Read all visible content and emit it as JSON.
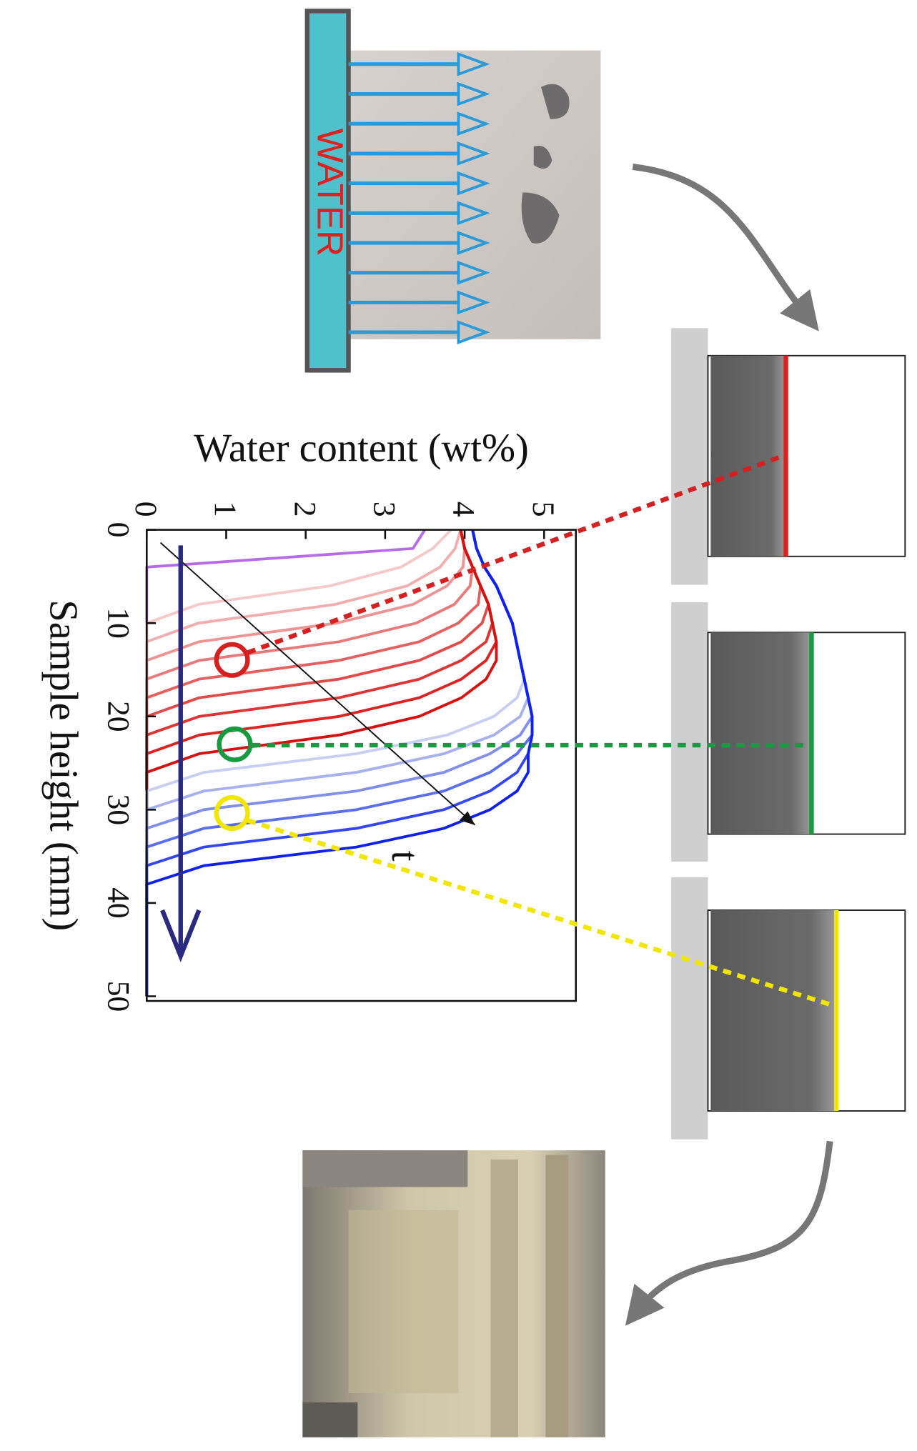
{
  "labels": {
    "water": "WATER"
  },
  "chart_data": {
    "type": "line",
    "xlabel": "Sample height (mm)",
    "ylabel": "Water content (wt%)",
    "annotation": "t",
    "x": [
      0,
      2,
      4,
      6,
      8,
      10,
      12,
      14,
      16,
      18,
      20,
      22,
      24,
      26,
      28,
      30,
      32,
      34,
      36,
      38,
      40,
      42,
      44,
      46,
      48,
      50
    ],
    "xlim": [
      0,
      50.5
    ],
    "xticks": [
      0,
      10,
      20,
      30,
      40,
      50
    ],
    "ylim": [
      0,
      5.4
    ],
    "yticks": [
      0,
      1,
      2,
      3,
      4,
      5
    ],
    "series": [
      {
        "color": "#b76be8",
        "values": [
          3.5,
          3.35,
          0,
          0,
          0,
          0,
          0,
          0,
          0,
          0,
          0,
          0,
          0,
          0,
          0,
          0,
          0,
          0,
          0,
          0,
          0,
          0,
          0,
          0,
          0,
          0
        ]
      },
      {
        "color": "#f6c9c9",
        "values": [
          3.83,
          3.6,
          3.2,
          2.31,
          0.65,
          0,
          0,
          0,
          0,
          0,
          0,
          0,
          0,
          0,
          0,
          0,
          0,
          0,
          0,
          0,
          0,
          0,
          0,
          0,
          0,
          0
        ]
      },
      {
        "color": "#f2aeae",
        "values": [
          3.95,
          3.88,
          3.69,
          3.28,
          2.37,
          0.65,
          0,
          0,
          0,
          0,
          0,
          0,
          0,
          0,
          0,
          0,
          0,
          0,
          0,
          0,
          0,
          0,
          0,
          0,
          0,
          0
        ]
      },
      {
        "color": "#ee9494",
        "values": [
          3.95,
          4.0,
          3.98,
          3.78,
          3.35,
          2.39,
          0.66,
          0,
          0,
          0,
          0,
          0,
          0,
          0,
          0,
          0,
          0,
          0,
          0,
          0,
          0,
          0,
          0,
          0,
          0,
          0
        ]
      },
      {
        "color": "#ea7a7a",
        "values": [
          3.95,
          4.0,
          4.1,
          4.07,
          3.87,
          3.39,
          2.42,
          0.66,
          0,
          0,
          0,
          0,
          0,
          0,
          0,
          0,
          0,
          0,
          0,
          0,
          0,
          0,
          0,
          0,
          0,
          0
        ]
      },
      {
        "color": "#e66060",
        "values": [
          3.95,
          4.0,
          4.1,
          4.2,
          4.17,
          3.92,
          3.43,
          2.42,
          0.66,
          0,
          0,
          0,
          0,
          0,
          0,
          0,
          0,
          0,
          0,
          0,
          0,
          0,
          0,
          0,
          0,
          0
        ]
      },
      {
        "color": "#e34a4a",
        "values": [
          3.95,
          4.0,
          4.1,
          4.2,
          4.3,
          4.22,
          3.96,
          3.43,
          2.42,
          0.66,
          0,
          0,
          0,
          0,
          0,
          0,
          0,
          0,
          0,
          0,
          0,
          0,
          0,
          0,
          0,
          0
        ]
      },
      {
        "color": "#e03434",
        "values": [
          3.95,
          4.0,
          4.1,
          4.2,
          4.3,
          4.35,
          4.27,
          3.96,
          3.43,
          2.42,
          0.66,
          0,
          0,
          0,
          0,
          0,
          0,
          0,
          0,
          0,
          0,
          0,
          0,
          0,
          0,
          0
        ]
      },
      {
        "color": "#dd2222",
        "values": [
          3.95,
          4.0,
          4.1,
          4.2,
          4.3,
          4.35,
          4.4,
          4.27,
          3.96,
          3.43,
          2.42,
          0.66,
          0,
          0,
          0,
          0,
          0,
          0,
          0,
          0,
          0,
          0,
          0,
          0,
          0,
          0
        ]
      },
      {
        "color": "#d81010",
        "values": [
          3.95,
          4.0,
          4.1,
          4.2,
          4.3,
          4.35,
          4.4,
          4.4,
          4.27,
          3.96,
          3.43,
          2.42,
          0.66,
          0,
          0,
          0,
          0,
          0,
          0,
          0,
          0,
          0,
          0,
          0,
          0,
          0
        ]
      },
      {
        "color": "#c8cff2",
        "values": [
          4.1,
          4.15,
          4.25,
          4.4,
          4.5,
          4.6,
          4.65,
          4.7,
          4.75,
          4.66,
          4.37,
          3.78,
          2.64,
          0.72,
          0,
          0,
          0,
          0,
          0,
          0,
          0,
          0,
          0,
          0,
          0,
          0
        ]
      },
      {
        "color": "#a6b1ee",
        "values": [
          4.1,
          4.15,
          4.25,
          4.4,
          4.5,
          4.6,
          4.65,
          4.7,
          4.75,
          4.8,
          4.7,
          4.37,
          3.74,
          2.64,
          0.72,
          0,
          0,
          0,
          0,
          0,
          0,
          0,
          0,
          0,
          0,
          0
        ]
      },
      {
        "color": "#8090ea",
        "values": [
          4.1,
          4.15,
          4.25,
          4.4,
          4.5,
          4.6,
          4.65,
          4.7,
          4.75,
          4.8,
          4.85,
          4.7,
          4.32,
          3.74,
          2.64,
          0.72,
          0,
          0,
          0,
          0,
          0,
          0,
          0,
          0,
          0,
          0
        ]
      },
      {
        "color": "#5a6ef0",
        "values": [
          4.1,
          4.15,
          4.25,
          4.4,
          4.5,
          4.6,
          4.65,
          4.7,
          4.75,
          4.8,
          4.85,
          4.85,
          4.66,
          4.32,
          3.74,
          2.64,
          0.72,
          0,
          0,
          0,
          0,
          0,
          0,
          0,
          0,
          0
        ]
      },
      {
        "color": "#3446f4",
        "values": [
          4.1,
          4.15,
          4.25,
          4.4,
          4.5,
          4.6,
          4.65,
          4.7,
          4.75,
          4.8,
          4.85,
          4.85,
          4.8,
          4.66,
          4.32,
          3.74,
          2.64,
          0.72,
          0,
          0,
          0,
          0,
          0,
          0,
          0,
          0
        ]
      },
      {
        "color": "#1020f0",
        "values": [
          4.1,
          4.15,
          4.25,
          4.4,
          4.5,
          4.6,
          4.65,
          4.7,
          4.75,
          4.8,
          4.85,
          4.85,
          4.8,
          4.8,
          4.66,
          4.32,
          3.74,
          2.64,
          0.72,
          0,
          0,
          0,
          0,
          0,
          0,
          0
        ]
      }
    ]
  }
}
